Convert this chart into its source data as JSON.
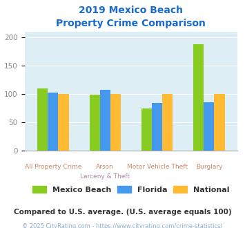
{
  "title_line1": "2019 Mexico Beach",
  "title_line2": "Property Crime Comparison",
  "categories": [
    "All Property Crime",
    "Arson\nLarceny & Theft",
    "Motor Vehicle Theft",
    "Burglary"
  ],
  "cat_labels_line1": [
    "All Property Crime",
    "Arson",
    "Motor Vehicle Theft",
    "Burglary"
  ],
  "cat_labels_line2": [
    "",
    "Larceny & Theft",
    "",
    ""
  ],
  "series": {
    "Mexico Beach": [
      110,
      99,
      74,
      188
    ],
    "Florida": [
      102,
      107,
      84,
      86
    ],
    "National": [
      100,
      100,
      100,
      100
    ]
  },
  "colors": {
    "Mexico Beach": "#88cc22",
    "Florida": "#4499ee",
    "National": "#ffbb33"
  },
  "ylim": [
    0,
    210
  ],
  "yticks": [
    0,
    50,
    100,
    150,
    200
  ],
  "plot_bg": "#ddeef5",
  "title_color": "#1a6acc",
  "tick_color": "#888888",
  "xlabel_color_line1": "#cc8866",
  "xlabel_color_line2": "#aa88aa",
  "legend_text_color": "#333333",
  "subtitle": "Compared to U.S. average. (U.S. average equals 100)",
  "subtitle_color": "#333333",
  "footer": "© 2025 CityRating.com - https://www.cityrating.com/crime-statistics/",
  "footer_color": "#88aacc",
  "bar_width": 0.2
}
